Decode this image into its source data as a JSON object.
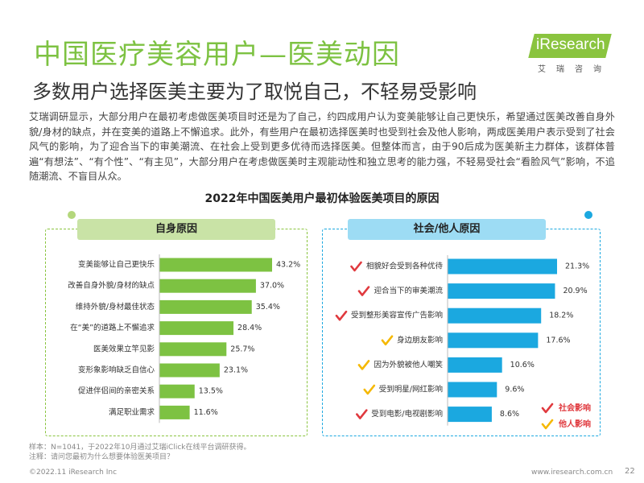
{
  "header": {
    "title": "中国医疗美容用户—医美动因",
    "subtitle": "多数用户选择医美主要为了取悦自己，不轻易受影响",
    "logo": "iResearch",
    "logo_sub": "艾瑞咨询"
  },
  "body_text": "艾瑞调研显示，大部分用户在最初考虑做医美项目时还是为了自己，约四成用户认为变美能够让自己更快乐，希望通过医美改善自身外貌/身材的缺点，并在变美的道路上不懈追求。此外，有些用户在最初选择医美时也受到社会及他人影响，两成医美用户表示受到了社会风气的影响，为了迎合当下的审美潮流、在社会上受到更多优待而选择医美。但整体而言，由于90后成为医美新主力群体，该群体普遍“有想法”、“有个性”、“有主见”，大部分用户在考虑做医美时主观能动性和独立思考的能力强，不轻易受社会“看脸风气”影响，不追随潮流、不盲目从众。",
  "colors": {
    "green": "#7dc242",
    "blue": "#1ba8e0",
    "red": "#e0393e",
    "yellow": "#f5b800"
  },
  "chart_data": [
    {
      "type": "bar",
      "orientation": "horizontal",
      "title": "2022年中国医美用户最初体验医美项目的原因",
      "panel_label": "自身原因",
      "unit": "%",
      "categories": [
        "变美能够让自己更快乐",
        "改善自身外貌/身材的缺点",
        "维持外貌/身材最佳状态",
        "在“美”的道路上不懈追求",
        "医美效果立竿见影",
        "变形象影响缺乏自信心",
        "促进伴侣间的亲密关系",
        "满足职业需求"
      ],
      "values": [
        43.2,
        37.0,
        35.4,
        28.4,
        25.7,
        23.1,
        13.5,
        11.6
      ],
      "value_labels": [
        "43.2%",
        "37.0%",
        "35.4%",
        "28.4%",
        "25.7%",
        "23.1%",
        "13.5%",
        "11.6%"
      ],
      "color": "#7dc242",
      "xlim": [
        0,
        50
      ]
    },
    {
      "type": "bar",
      "orientation": "horizontal",
      "panel_label": "社会/他人原因",
      "unit": "%",
      "categories": [
        "相貌好会受到各种优待",
        "迎合当下的审美潮流",
        "受到整形美容宣传广告影响",
        "身边朋友影响",
        "因为外貌被他人嘲笑",
        "受到明星/网红影响",
        "受到电影/电视剧影响"
      ],
      "values": [
        21.3,
        20.9,
        18.2,
        17.6,
        10.6,
        9.6,
        8.6
      ],
      "value_labels": [
        "21.3%",
        "20.9%",
        "18.2%",
        "17.6%",
        "10.6%",
        "9.6%",
        "8.6%"
      ],
      "marks": [
        "社会影响",
        "社会影响",
        "社会影响",
        "他人影响",
        "他人影响",
        "他人影响",
        "社会影响"
      ],
      "color": "#1ba8e0",
      "xlim": [
        0,
        25
      ],
      "legend": [
        "社会影响",
        "他人影响"
      ]
    }
  ],
  "footnotes": [
    "样本：N=1041，于2022年10月通过艾瑞iClick在线平台调研获得。",
    "注释：请问您最初为什么想要体验医美项目？"
  ],
  "footer": {
    "copyright": "©2022.11 iResearch Inc",
    "url": "www.iresearch.com.cn",
    "page": "22"
  }
}
